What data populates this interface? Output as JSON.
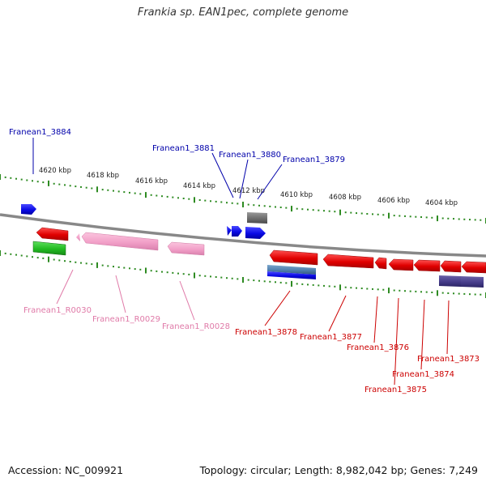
{
  "title": "Frankia sp. EAN1pec, complete genome",
  "footer": {
    "accession": "Accession: NC_009921",
    "summary": "Topology: circular; Length: 8,982,042 bp; Genes: 7,249"
  },
  "colors": {
    "backbone": "#888888",
    "tick": "#2e8b22",
    "plus_cds": "#1010e0",
    "minus_cds": "#e01010",
    "rrna": "#f2a0c8",
    "other": "#707070",
    "label_blue": "#0000aa",
    "label_red": "#cc0000",
    "label_pink": "#e07aa8"
  },
  "scale": {
    "unit": "kbp",
    "labels": [
      "4620 kbp",
      "4618 kbp",
      "4616 kbp",
      "4614 kbp",
      "4612 kbp",
      "4610 kbp",
      "4608 kbp",
      "4606 kbp",
      "4604 kbp"
    ]
  },
  "genes": [
    {
      "name": "Franean1_3884",
      "color": "label_blue"
    },
    {
      "name": "Franean1_3881",
      "color": "label_blue"
    },
    {
      "name": "Franean1_3880",
      "color": "label_blue"
    },
    {
      "name": "Franean1_3879",
      "color": "label_blue"
    },
    {
      "name": "Franean1_R0030",
      "color": "label_pink"
    },
    {
      "name": "Franean1_R0029",
      "color": "label_pink"
    },
    {
      "name": "Franean1_R0028",
      "color": "label_pink"
    },
    {
      "name": "Franean1_3878",
      "color": "label_red"
    },
    {
      "name": "Franean1_3877",
      "color": "label_red"
    },
    {
      "name": "Franean1_3876",
      "color": "label_red"
    },
    {
      "name": "Franean1_3873",
      "color": "label_red"
    },
    {
      "name": "Franean1_3874",
      "color": "label_red"
    },
    {
      "name": "Franean1_3875",
      "color": "label_red"
    }
  ]
}
